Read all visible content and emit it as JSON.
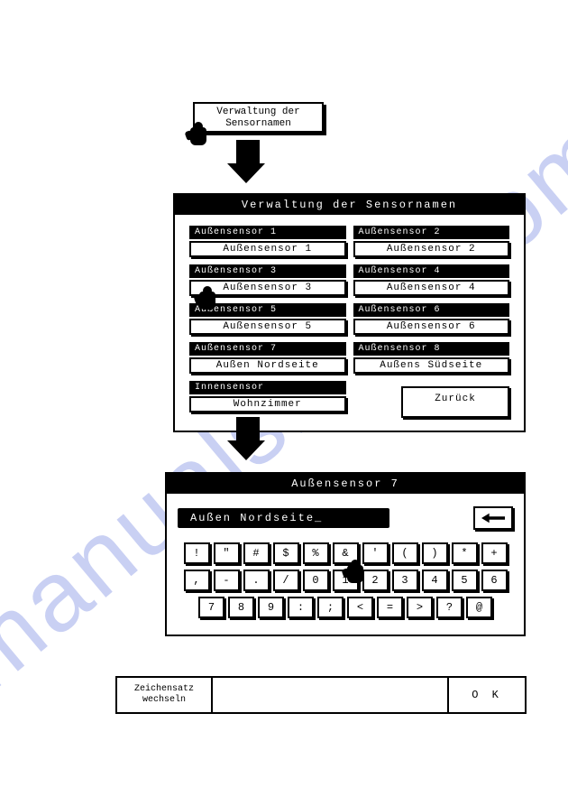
{
  "watermark": "manualshive.com",
  "top_button": {
    "line1": "Verwaltung der",
    "line2": "Sensornamen"
  },
  "win1": {
    "title": "Verwaltung der Sensornamen",
    "sensors": [
      {
        "label": "Außensensor 1",
        "value": "Außensensor 1"
      },
      {
        "label": "Außensensor 2",
        "value": "Außensensor 2"
      },
      {
        "label": "Außensensor 3",
        "value": "Außensensor 3"
      },
      {
        "label": "Außensensor 4",
        "value": "Außensensor 4"
      },
      {
        "label": "Außensensor 5",
        "value": "Außensensor 5"
      },
      {
        "label": "Außensensor 6",
        "value": "Außensensor 6"
      },
      {
        "label": "Außensensor 7",
        "value": "Außen Nordseite"
      },
      {
        "label": "Außensensor 8",
        "value": "Außens Südseite"
      },
      {
        "label": "Innensensor",
        "value": "Wohnzimmer"
      }
    ],
    "back_label": "Zurück"
  },
  "win2": {
    "title": "Außensensor 7",
    "display": "Außen Nordseite_",
    "rows": [
      [
        "!",
        "\"",
        "#",
        "$",
        "%",
        "&",
        "'",
        "(",
        ")",
        "*",
        "+"
      ],
      [
        ",",
        "-",
        ".",
        "/",
        "0",
        "1",
        "2",
        "3",
        "4",
        "5",
        "6"
      ],
      [
        "7",
        "8",
        "9",
        ":",
        ";",
        "<",
        "=",
        ">",
        "?",
        "@"
      ]
    ]
  },
  "bottom": {
    "left": "Zeichensatz wechseln",
    "ok": "O K"
  },
  "colors": {
    "fg": "#000000",
    "bg": "#ffffff",
    "watermark": "rgba(100,120,220,0.35)"
  }
}
